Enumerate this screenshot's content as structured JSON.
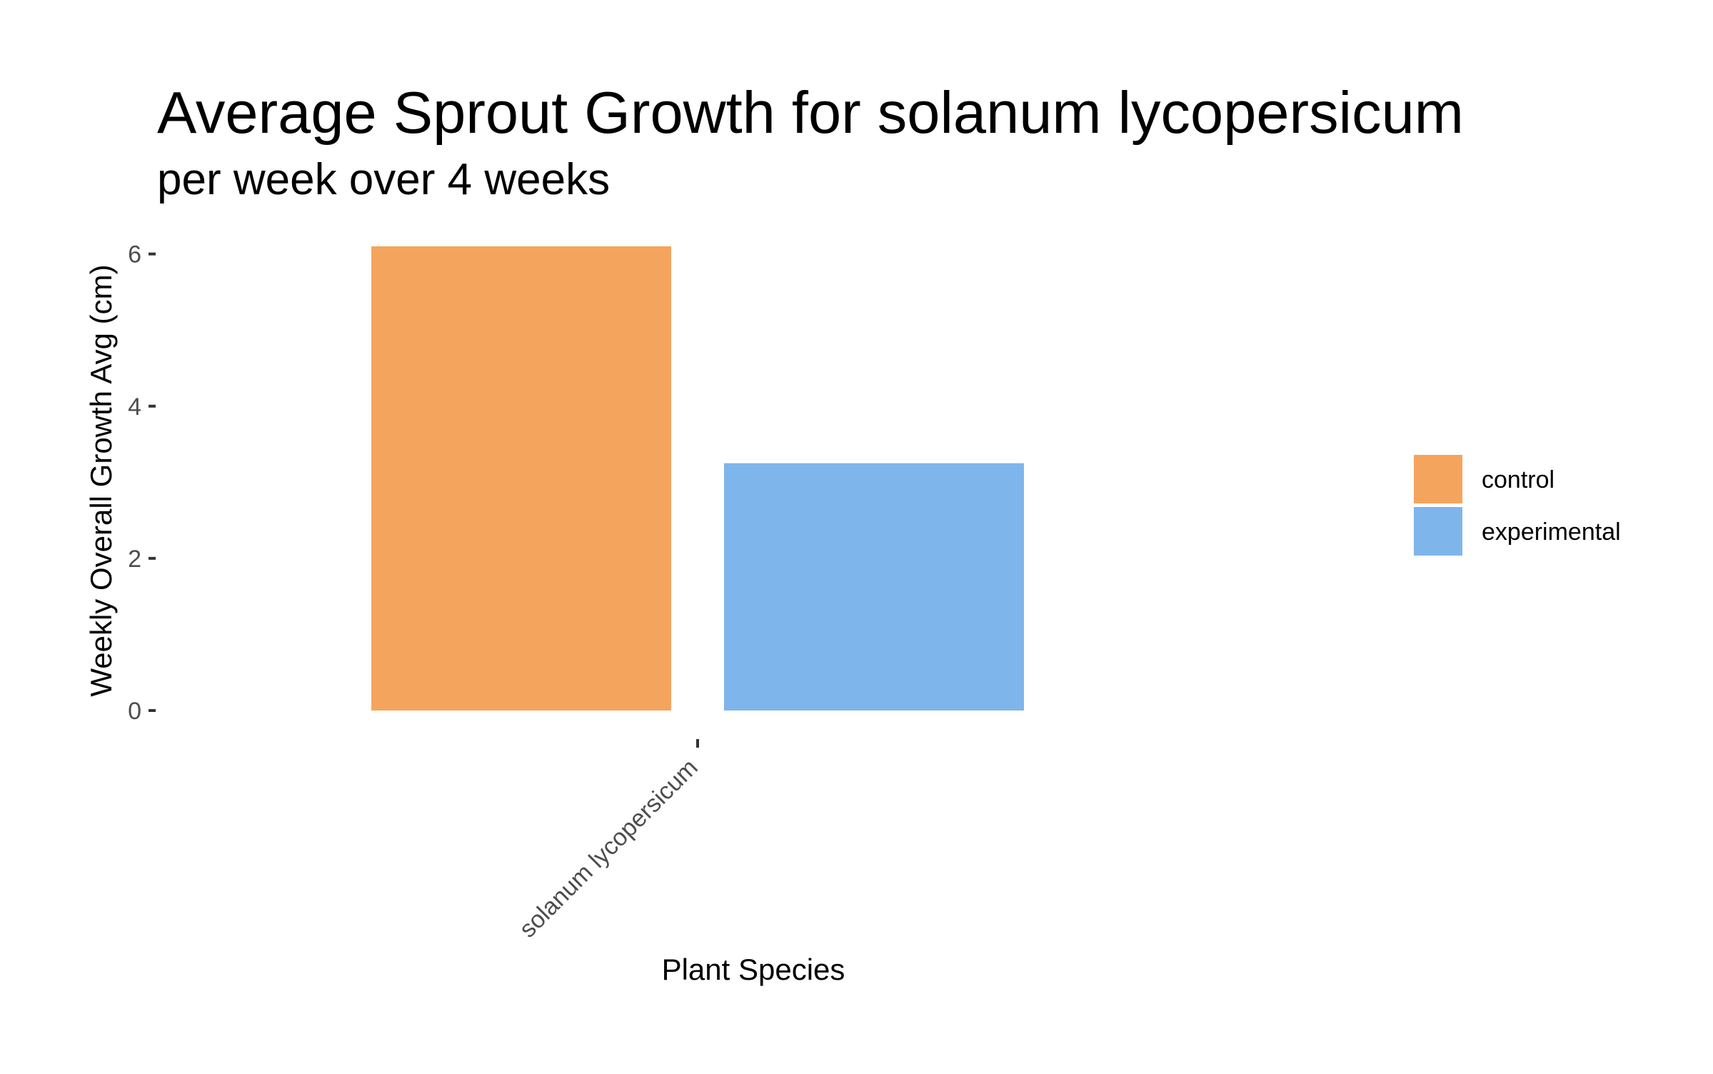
{
  "chart_data": {
    "type": "bar",
    "title": "Average Sprout Growth for solanum lycopersicum",
    "subtitle": "per week over 4 weeks",
    "xlabel": "Plant Species",
    "ylabel": "Weekly Overall Growth Avg (cm)",
    "categories": [
      "solanum lycopersicum"
    ],
    "series": [
      {
        "name": "control",
        "values": [
          6.1
        ],
        "color": "#F5A45D"
      },
      {
        "name": "experimental",
        "values": [
          3.25
        ],
        "color": "#7EB5EB"
      }
    ],
    "ylim": [
      0,
      6.1
    ],
    "yticks": [
      0,
      2,
      4,
      6
    ],
    "yticklabels": [
      "0",
      "2",
      "4",
      "6"
    ],
    "x_tick_label_rotation": "45 degrees",
    "grid": false,
    "legend": {
      "placement": "right",
      "entries": [
        "control",
        "experimental"
      ]
    }
  }
}
